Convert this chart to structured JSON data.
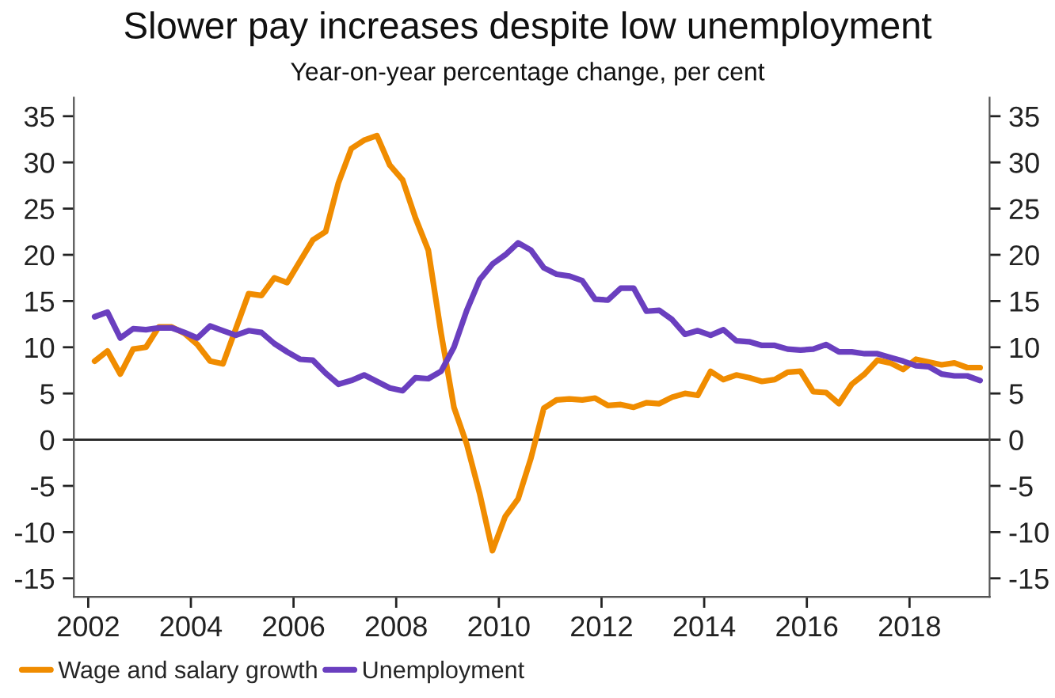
{
  "chart_data": {
    "type": "line",
    "title": "Slower pay increases despite low unemployment",
    "subtitle": "Year-on-year percentage change, per cent",
    "x": [
      2002.125,
      2002.375,
      2002.625,
      2002.875,
      2003.125,
      2003.375,
      2003.625,
      2003.875,
      2004.125,
      2004.375,
      2004.625,
      2004.875,
      2005.125,
      2005.375,
      2005.625,
      2005.875,
      2006.125,
      2006.375,
      2006.625,
      2006.875,
      2007.125,
      2007.375,
      2007.625,
      2007.875,
      2008.125,
      2008.375,
      2008.625,
      2008.875,
      2009.125,
      2009.375,
      2009.625,
      2009.875,
      2010.125,
      2010.375,
      2010.625,
      2010.875,
      2011.125,
      2011.375,
      2011.625,
      2011.875,
      2012.125,
      2012.375,
      2012.625,
      2012.875,
      2013.125,
      2013.375,
      2013.625,
      2013.875,
      2014.125,
      2014.375,
      2014.625,
      2014.875,
      2015.125,
      2015.375,
      2015.625,
      2015.875,
      2016.125,
      2016.375,
      2016.625,
      2016.875,
      2017.125,
      2017.375,
      2017.625,
      2017.875,
      2018.125,
      2018.375,
      2018.625,
      2018.875,
      2019.125,
      2019.375
    ],
    "series": [
      {
        "name": "Wage and salary growth",
        "color": "#f08c00",
        "values": [
          8.5,
          9.6,
          7.1,
          9.8,
          10,
          12.2,
          12.2,
          11.5,
          10.3,
          8.5,
          8.2,
          12,
          15.8,
          15.6,
          17.5,
          17,
          19.3,
          21.6,
          22.5,
          27.8,
          31.5,
          32.4,
          32.9,
          29.7,
          28.1,
          24,
          20.5,
          11.5,
          3.5,
          -0.5,
          -5.8,
          -12,
          -8.3,
          -6.4,
          -2,
          3.4,
          4.3,
          4.4,
          4.3,
          4.5,
          3.7,
          3.8,
          3.5,
          4,
          3.9,
          4.6,
          5,
          4.8,
          7.4,
          6.5,
          7,
          6.7,
          6.3,
          6.5,
          7.3,
          7.4,
          5.2,
          5.1,
          3.9,
          6,
          7.1,
          8.6,
          8.3,
          7.6,
          8.7,
          8.4,
          8.1,
          8.3,
          7.8,
          7.8
        ]
      },
      {
        "name": "Unemployment",
        "color": "#6a3fbf",
        "values": [
          13.3,
          13.8,
          11,
          12,
          11.9,
          12.1,
          12.1,
          11.6,
          11,
          12.3,
          11.8,
          11.3,
          11.8,
          11.6,
          10.4,
          9.5,
          8.7,
          8.6,
          7.2,
          6,
          6.4,
          7,
          6.3,
          5.6,
          5.3,
          6.7,
          6.6,
          7.4,
          10,
          14,
          17.3,
          19,
          20,
          21.3,
          20.5,
          18.6,
          17.9,
          17.7,
          17.2,
          15.2,
          15.1,
          16.4,
          16.4,
          13.9,
          14,
          13,
          11.4,
          11.8,
          11.3,
          11.9,
          10.7,
          10.6,
          10.2,
          10.2,
          9.8,
          9.7,
          9.8,
          10.3,
          9.5,
          9.5,
          9.3,
          9.3,
          8.9,
          8.5,
          8,
          7.9,
          7.1,
          6.9,
          6.9,
          6.4
        ]
      }
    ],
    "xlim": [
      2001.72,
      2019.56
    ],
    "xticks": [
      2002,
      2004,
      2006,
      2008,
      2010,
      2012,
      2014,
      2016,
      2018
    ],
    "ylim": [
      -17,
      37
    ],
    "yticks": [
      -15,
      -10,
      -5,
      0,
      5,
      10,
      15,
      20,
      25,
      30,
      35
    ],
    "y2lim": [
      -17,
      37
    ],
    "y2ticks": [
      -15,
      -10,
      -5,
      0,
      5,
      10,
      15,
      20,
      25,
      30,
      35
    ],
    "ref_lines": [
      {
        "axis": "y",
        "value": 0,
        "label": null,
        "color": "#222222"
      }
    ],
    "grid": false,
    "legend": "bottom left",
    "marker": "none",
    "line_style": "solid"
  }
}
